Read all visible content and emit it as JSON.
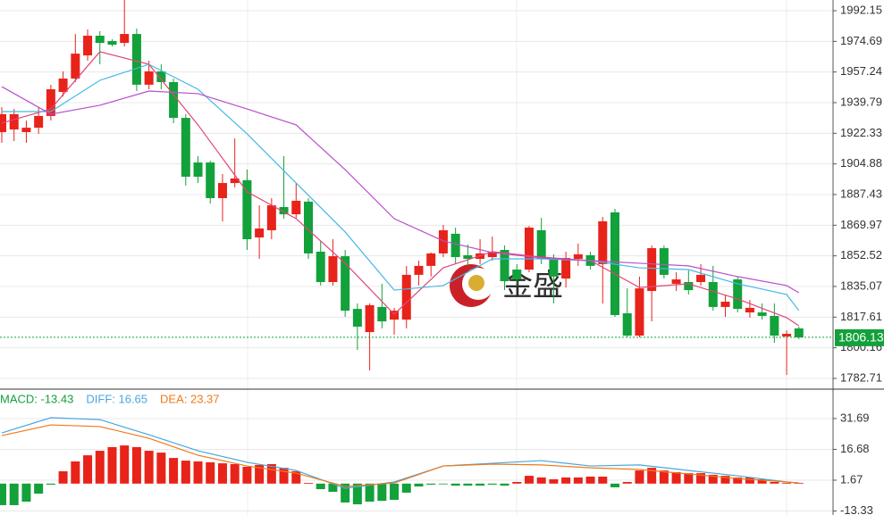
{
  "chart_data": [
    {
      "type": "candlestick",
      "open": [
        1923.0,
        1924.5,
        1923.0,
        1925.5,
        1932.2,
        1945.9,
        1953.5,
        1966.7,
        1977.9,
        1974.9,
        1973.8,
        1978.9,
        1950.0,
        1957.6,
        1951.5,
        1931.1,
        1905.7,
        1905.7,
        1885.4,
        1894.0,
        1895.6,
        1863.0,
        1867.1,
        1880.3,
        1876.2,
        1883.4,
        1854.9,
        1837.6,
        1852.3,
        1822.3,
        1809.1,
        1823.4,
        1816.2,
        1816.2,
        1841.7,
        1846.8,
        1853.9,
        1865.1,
        1852.9,
        1850.8,
        1851.8,
        1855.9,
        1844.7,
        1844.7,
        1867.1,
        1850.8,
        1839.6,
        1850.8,
        1852.9,
        1847.8,
        1877.3,
        1819.8,
        1807.1,
        1832.5,
        1856.9,
        1836.6,
        1837.6,
        1837.6,
        1837.6,
        1823.4,
        1839.1,
        1820.3,
        1820.3,
        1818.3,
        1806.6,
        1811.2
      ],
      "high": [
        1937.2,
        1936.2,
        1929.6,
        1937.2,
        1950.0,
        1957.6,
        1978.9,
        1981.5,
        1980.5,
        1975.9,
        1998.3,
        1982.0,
        1963.7,
        1961.6,
        1953.5,
        1933.2,
        1909.3,
        1906.7,
        1899.1,
        1919.4,
        1901.7,
        1881.3,
        1885.4,
        1909.3,
        1894.0,
        1885.4,
        1861.0,
        1862.0,
        1855.9,
        1825.4,
        1825.4,
        1836.6,
        1822.9,
        1846.8,
        1849.8,
        1854.4,
        1870.1,
        1868.6,
        1859.0,
        1862.0,
        1863.5,
        1858.4,
        1847.8,
        1869.6,
        1874.2,
        1853.4,
        1854.9,
        1859.5,
        1854.9,
        1874.7,
        1879.3,
        1834.0,
        1840.7,
        1858.4,
        1858.4,
        1843.2,
        1844.2,
        1847.8,
        1846.8,
        1830.5,
        1840.7,
        1827.4,
        1825.4,
        1825.4,
        1810.1,
        1812.2
      ],
      "low": [
        1916.9,
        1917.9,
        1916.9,
        1922.0,
        1929.6,
        1943.3,
        1951.5,
        1963.7,
        1961.6,
        1971.8,
        1971.8,
        1946.4,
        1947.4,
        1947.4,
        1928.1,
        1892.5,
        1894.0,
        1882.3,
        1872.2,
        1891.5,
        1855.9,
        1850.8,
        1862.0,
        1873.7,
        1873.7,
        1850.8,
        1835.6,
        1835.6,
        1817.8,
        1799.0,
        1787.3,
        1811.2,
        1807.6,
        1811.2,
        1835.6,
        1840.7,
        1851.8,
        1848.3,
        1846.8,
        1847.8,
        1849.8,
        1833.0,
        1835.6,
        1843.2,
        1847.8,
        1825.4,
        1834.5,
        1846.8,
        1844.7,
        1825.4,
        1817.8,
        1806.1,
        1806.1,
        1815.2,
        1839.6,
        1832.5,
        1830.5,
        1835.6,
        1821.3,
        1817.8,
        1820.3,
        1817.3,
        1816.2,
        1803.0,
        1784.7,
        1805.1
      ],
      "close": [
        1933.2,
        1933.2,
        1925.5,
        1932.2,
        1947.4,
        1953.5,
        1967.7,
        1977.9,
        1973.8,
        1972.8,
        1978.9,
        1950.0,
        1957.6,
        1951.5,
        1931.1,
        1897.6,
        1897.6,
        1885.4,
        1894.0,
        1896.6,
        1862.0,
        1868.1,
        1881.3,
        1876.2,
        1883.9,
        1853.9,
        1837.6,
        1852.3,
        1821.3,
        1812.2,
        1824.4,
        1815.2,
        1821.3,
        1841.7,
        1846.8,
        1853.9,
        1867.1,
        1851.8,
        1850.8,
        1853.9,
        1854.9,
        1838.1,
        1839.1,
        1868.6,
        1850.8,
        1840.7,
        1851.3,
        1853.4,
        1846.8,
        1872.2,
        1818.8,
        1807.1,
        1834.0,
        1856.9,
        1841.7,
        1839.1,
        1833.0,
        1841.7,
        1823.4,
        1826.4,
        1822.3,
        1822.9,
        1818.3,
        1807.1,
        1808.1,
        1806.1
      ],
      "up_color": "#e8231a",
      "down_color": "#12a13a",
      "lines": [
        {
          "color": "#e2457a",
          "x": [
            0,
            4,
            8,
            12,
            16,
            20,
            24,
            28,
            32,
            36,
            40,
            44,
            48,
            52,
            56,
            60,
            64,
            65
          ],
          "values": [
            1928.1,
            1936.2,
            1968.8,
            1961.6,
            1927.1,
            1889.0,
            1873.7,
            1848.3,
            1819.3,
            1845.7,
            1854.9,
            1851.8,
            1849.8,
            1834.5,
            1836.6,
            1828.0,
            1817.3,
            1812.7
          ]
        },
        {
          "color": "#45b9e6",
          "x": [
            0,
            4,
            8,
            12,
            16,
            20,
            24,
            28,
            32,
            36,
            40,
            44,
            48,
            52,
            56,
            60,
            64,
            65
          ],
          "values": [
            1934.7,
            1934.7,
            1952.5,
            1961.6,
            1947.4,
            1922.0,
            1894.0,
            1866.1,
            1833.0,
            1835.6,
            1850.8,
            1850.8,
            1849.8,
            1845.7,
            1844.7,
            1836.6,
            1830.5,
            1821.3
          ]
        },
        {
          "color": "#b94fcc",
          "x": [
            0,
            4,
            8,
            12,
            16,
            20,
            24,
            28,
            32,
            36,
            40,
            44,
            48,
            52,
            56,
            60,
            64,
            65
          ],
          "values": [
            1948.9,
            1933.2,
            1938.3,
            1946.4,
            1944.9,
            1936.2,
            1927.1,
            1901.6,
            1873.7,
            1861.0,
            1854.4,
            1851.3,
            1849.8,
            1848.3,
            1846.8,
            1840.7,
            1835.6,
            1831.5
          ]
        }
      ],
      "last_price": {
        "value": 1806.13,
        "color": "#12a13a"
      },
      "ylim": [
        1777.1,
        1998.25
      ],
      "yticks": [
        1992.15,
        1974.69,
        1957.24,
        1939.79,
        1922.33,
        1904.88,
        1887.43,
        1869.97,
        1852.52,
        1835.07,
        1817.61,
        1800.16,
        1782.71
      ],
      "grid": true,
      "watermark": "金盛"
    },
    {
      "type": "macd",
      "values": [
        -10.5,
        -10.5,
        -8.8,
        -4.9,
        -0.5,
        6.0,
        10.8,
        13.8,
        16.0,
        17.8,
        18.6,
        17.8,
        16.0,
        15.1,
        12.5,
        11.2,
        10.8,
        10.4,
        9.9,
        9.5,
        8.2,
        9.1,
        9.5,
        7.7,
        6.0,
        0.3,
        -2.7,
        -4.0,
        -9.2,
        -10.1,
        -8.8,
        -8.4,
        -7.9,
        -4.4,
        -1.4,
        -0.5,
        -0.3,
        -1.0,
        -1.0,
        -1.0,
        -0.5,
        -1.0,
        0.8,
        3.8,
        3.0,
        2.1,
        3.0,
        3.0,
        3.4,
        3.4,
        -1.8,
        0.8,
        6.4,
        7.7,
        6.4,
        5.6,
        5.1,
        5.1,
        4.3,
        3.8,
        3.0,
        3.0,
        2.1,
        0.8,
        0.3,
        0.3
      ],
      "up_color": "#e8231a",
      "down_color": "#12a13a",
      "lines": [
        {
          "color": "#4aa6e0",
          "x": [
            0,
            4,
            8,
            12,
            16,
            20,
            24,
            28,
            32,
            36,
            40,
            44,
            48,
            52,
            56,
            60,
            64,
            65
          ],
          "values": [
            24.7,
            32.1,
            31.2,
            23.8,
            16.0,
            10.4,
            6.4,
            -2.3,
            0.8,
            8.6,
            9.9,
            11.2,
            8.6,
            9.1,
            6.4,
            3.8,
            0.8,
            0.3
          ]
        },
        {
          "color": "#f07a1a",
          "x": [
            0,
            4,
            8,
            12,
            16,
            20,
            24,
            28,
            32,
            36,
            40,
            44,
            48,
            52,
            56,
            60,
            64,
            65
          ],
          "values": [
            23.4,
            28.6,
            27.8,
            22.1,
            13.8,
            8.6,
            5.1,
            -1.4,
            0.3,
            8.6,
            9.5,
            9.1,
            7.7,
            6.9,
            4.7,
            2.5,
            0.8,
            0.3
          ]
        }
      ],
      "legend": [
        {
          "label": "MACD: -13.43",
          "color": "#12a13a"
        },
        {
          "label": "DIFF: 16.65",
          "color": "#4aa6e0"
        },
        {
          "label": "DEA: 23.37",
          "color": "#f07a1a"
        }
      ],
      "ylim": [
        -15.3,
        45.6
      ],
      "yticks": [
        31.69,
        16.68,
        1.67,
        -13.33
      ],
      "grid": true
    }
  ]
}
